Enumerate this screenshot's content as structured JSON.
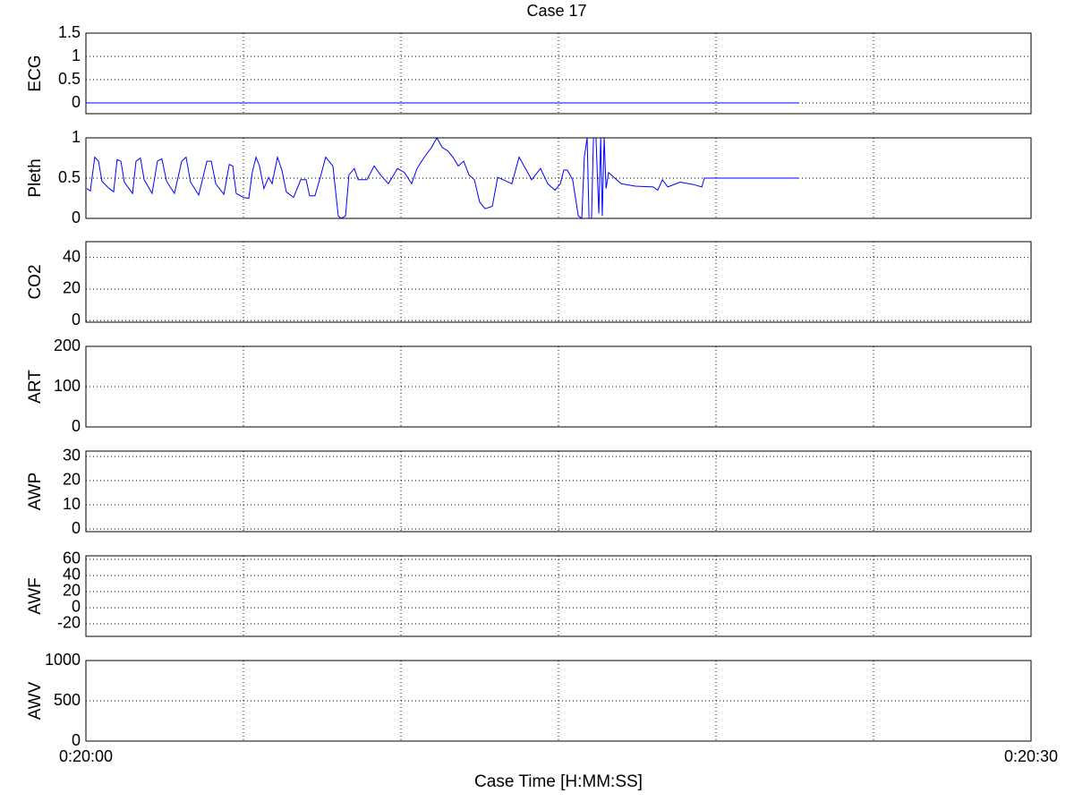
{
  "chart_data": [
    {
      "type": "line",
      "title": "Case 17",
      "ylabel": "ECG",
      "xlim": [
        1200,
        1230
      ],
      "xgrid": [
        1205,
        1210,
        1215,
        1220,
        1225
      ],
      "ylim": [
        -0.23,
        1.5
      ],
      "yticks": [
        0,
        0.5,
        1,
        1.5
      ],
      "grid": true,
      "series": [
        {
          "name": "ECG",
          "color": "#0000ff",
          "x": [
            1200,
            1222.64
          ],
          "values": [
            0,
            0
          ]
        }
      ]
    },
    {
      "type": "line",
      "ylabel": "Pleth",
      "xlim": [
        1200,
        1230
      ],
      "xgrid": [
        1205,
        1210,
        1215,
        1220,
        1225
      ],
      "ylim": [
        0,
        1
      ],
      "yticks": [
        0,
        0.5,
        1
      ],
      "grid": true,
      "series": [
        {
          "name": "Pleth",
          "color": "#0000ff",
          "x": [
            1200.03,
            1200.14,
            1200.28,
            1200.4,
            1200.51,
            1200.74,
            1200.88,
            1200.99,
            1201.11,
            1201.22,
            1201.48,
            1201.59,
            1201.73,
            1201.85,
            1202.1,
            1202.27,
            1202.41,
            1202.56,
            1202.81,
            1203.04,
            1203.18,
            1203.32,
            1203.58,
            1203.84,
            1203.98,
            1204.12,
            1204.38,
            1204.55,
            1204.66,
            1204.77,
            1205.0,
            1205.17,
            1205.28,
            1205.4,
            1205.51,
            1205.65,
            1205.8,
            1205.91,
            1206.08,
            1206.22,
            1206.36,
            1206.59,
            1206.82,
            1206.99,
            1207.1,
            1207.27,
            1207.44,
            1207.61,
            1207.84,
            1208.01,
            1208.1,
            1208.24,
            1208.35,
            1208.52,
            1208.64,
            1208.92,
            1209.15,
            1209.35,
            1209.6,
            1209.89,
            1210.11,
            1210.34,
            1210.51,
            1210.74,
            1210.97,
            1211.14,
            1211.31,
            1211.48,
            1211.65,
            1211.82,
            1211.99,
            1212.16,
            1212.33,
            1212.5,
            1212.67,
            1212.9,
            1213.07,
            1213.24,
            1213.52,
            1213.75,
            1213.98,
            1214.15,
            1214.43,
            1214.66,
            1214.89,
            1215.06,
            1215.17,
            1215.28,
            1215.45,
            1215.63,
            1215.74,
            1215.82,
            1215.91,
            1215.97,
            1216.05,
            1216.11,
            1216.19,
            1216.28,
            1216.34,
            1216.39,
            1216.45,
            1216.51,
            1216.59,
            1216.76,
            1216.99,
            1217.44,
            1218.01,
            1218.15,
            1218.3,
            1218.47,
            1218.86,
            1219.29,
            1219.55,
            1219.63,
            1222.64
          ],
          "values": [
            0.37,
            0.34,
            0.76,
            0.71,
            0.46,
            0.37,
            0.33,
            0.73,
            0.71,
            0.45,
            0.31,
            0.71,
            0.75,
            0.48,
            0.31,
            0.71,
            0.74,
            0.46,
            0.31,
            0.71,
            0.76,
            0.45,
            0.29,
            0.71,
            0.71,
            0.43,
            0.3,
            0.67,
            0.65,
            0.31,
            0.26,
            0.25,
            0.57,
            0.76,
            0.65,
            0.37,
            0.51,
            0.43,
            0.76,
            0.6,
            0.33,
            0.26,
            0.48,
            0.48,
            0.28,
            0.28,
            0.51,
            0.76,
            0.65,
            0.03,
            0,
            0.03,
            0.54,
            0.62,
            0.48,
            0.48,
            0.65,
            0.54,
            0.43,
            0.62,
            0.57,
            0.43,
            0.62,
            0.76,
            0.88,
            1,
            0.88,
            0.84,
            0.76,
            0.65,
            0.71,
            0.54,
            0.48,
            0.2,
            0.12,
            0.15,
            0.51,
            0.48,
            0.43,
            0.76,
            0.6,
            0.48,
            0.62,
            0.43,
            0.35,
            0.43,
            0.6,
            0.6,
            0.48,
            0.03,
            0,
            0.76,
            1,
            0,
            0,
            1,
            1,
            0.06,
            1,
            0.03,
            1,
            0.37,
            0.57,
            0.51,
            0.43,
            0.4,
            0.39,
            0.35,
            0.48,
            0.39,
            0.45,
            0.42,
            0.39,
            0.5,
            0.5
          ]
        }
      ]
    },
    {
      "type": "line",
      "ylabel": "CO2",
      "xlim": [
        1200,
        1230
      ],
      "xgrid": [
        1205,
        1210,
        1215,
        1220,
        1225
      ],
      "ylim": [
        -1,
        50
      ],
      "yticks": [
        0,
        20,
        40
      ],
      "grid": true
    },
    {
      "type": "line",
      "ylabel": "ART",
      "xlim": [
        1200,
        1230
      ],
      "xgrid": [
        1205,
        1210,
        1215,
        1220,
        1225
      ],
      "ylim": [
        0,
        200
      ],
      "yticks": [
        0,
        100,
        200
      ],
      "grid": true
    },
    {
      "type": "line",
      "ylabel": "AWP",
      "xlim": [
        1200,
        1230
      ],
      "xgrid": [
        1205,
        1210,
        1215,
        1220,
        1225
      ],
      "ylim": [
        -1.1,
        32.2
      ],
      "yticks": [
        0,
        10,
        20,
        30
      ],
      "grid": true
    },
    {
      "type": "line",
      "ylabel": "AWF",
      "xlim": [
        1200,
        1230
      ],
      "xgrid": [
        1205,
        1210,
        1215,
        1220,
        1225
      ],
      "ylim": [
        -35.6,
        64.4
      ],
      "yticks": [
        -20,
        0,
        20,
        40,
        60
      ],
      "grid": true
    },
    {
      "type": "line",
      "ylabel": "AWV",
      "xlabel": "Case Time [H:MM:SS]",
      "xlim": [
        1200,
        1230
      ],
      "xgrid": [
        1205,
        1210,
        1215,
        1220,
        1225
      ],
      "xticks": [
        {
          "value": 1200,
          "label": "0:20:00"
        },
        {
          "value": 1230,
          "label": "0:20:30"
        }
      ],
      "ylim": [
        0,
        1000
      ],
      "yticks": [
        0,
        500,
        1000
      ],
      "grid": true
    }
  ]
}
